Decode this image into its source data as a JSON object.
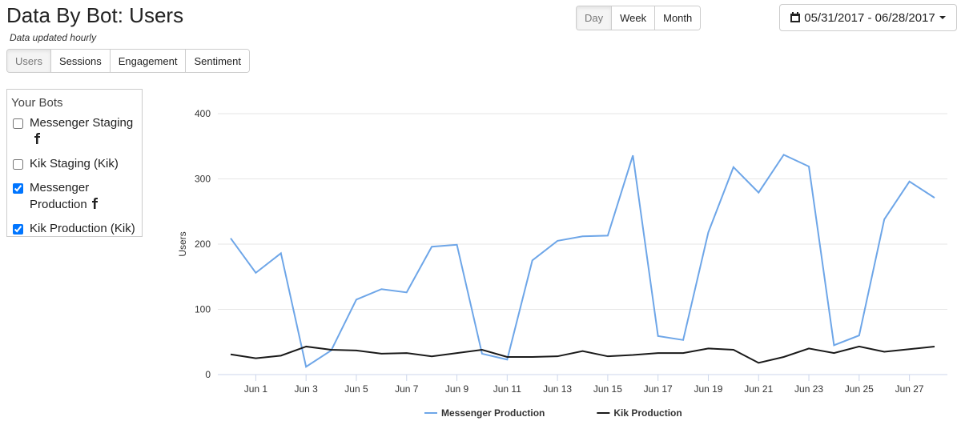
{
  "header": {
    "title": "Data By Bot: Users",
    "subtitle": "Data updated hourly"
  },
  "periods": [
    {
      "label": "Day",
      "selected": true
    },
    {
      "label": "Week",
      "selected": false
    },
    {
      "label": "Month",
      "selected": false
    }
  ],
  "date_range": "05/31/2017 - 06/28/2017",
  "tabs": [
    {
      "label": "Users",
      "selected": true
    },
    {
      "label": "Sessions",
      "selected": false
    },
    {
      "label": "Engagement",
      "selected": false
    },
    {
      "label": "Sentiment",
      "selected": false
    }
  ],
  "sidebar": {
    "title": "Your Bots",
    "bots": [
      {
        "label": "Messenger Staging",
        "checked": false,
        "facebook": true
      },
      {
        "label": "Kik Staging (Kik)",
        "checked": false,
        "facebook": false
      },
      {
        "label": "Messenger Production",
        "checked": true,
        "facebook": true
      },
      {
        "label": "Kik Production (Kik)",
        "checked": true,
        "facebook": false
      }
    ]
  },
  "chart_data": {
    "type": "line",
    "y_label": "Users",
    "categories": [
      null,
      "Jun 1",
      null,
      "Jun 3",
      null,
      "Jun 5",
      null,
      "Jun 7",
      null,
      "Jun 9",
      null,
      "Jun 11",
      null,
      "Jun 13",
      null,
      "Jun 15",
      null,
      "Jun 17",
      null,
      "Jun 19",
      null,
      "Jun 21",
      null,
      "Jun 23",
      null,
      "Jun 25",
      null,
      "Jun 27",
      null
    ],
    "series": [
      {
        "name": "Messenger Production",
        "color": "#6ea6e8",
        "values": [
          209,
          156,
          186,
          12,
          37,
          115,
          131,
          126,
          196,
          199,
          32,
          23,
          175,
          205,
          212,
          213,
          336,
          59,
          53,
          218,
          318,
          279,
          337,
          319,
          45,
          60,
          238,
          296,
          271
        ]
      },
      {
        "name": "Kik Production",
        "color": "#1a1a1a",
        "values": [
          31,
          25,
          29,
          43,
          38,
          37,
          32,
          33,
          28,
          33,
          38,
          27,
          27,
          28,
          36,
          28,
          30,
          33,
          33,
          40,
          38,
          18,
          27,
          40,
          33,
          43,
          35,
          39,
          43
        ]
      }
    ],
    "ylim": [
      0,
      400
    ],
    "yticks": [
      0,
      100,
      200,
      300,
      400
    ],
    "grid": true,
    "legend": "bottom"
  }
}
